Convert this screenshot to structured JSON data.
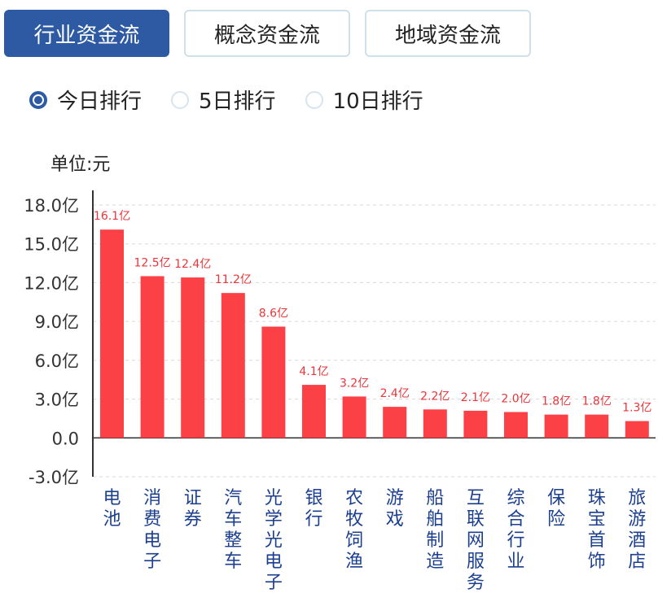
{
  "tabs": [
    {
      "label": "行业资金流",
      "active": true
    },
    {
      "label": "概念资金流",
      "active": false
    },
    {
      "label": "地域资金流",
      "active": false
    }
  ],
  "ranking_options": [
    {
      "label": "今日排行",
      "checked": true
    },
    {
      "label": "5日排行",
      "checked": false
    },
    {
      "label": "10日排行",
      "checked": false
    }
  ],
  "unit_label": "单位:元",
  "colors": {
    "bar": "#fb4146",
    "label": "#e8363a",
    "accent": "#2d5aa2",
    "category": "#1c3f8f"
  },
  "chart_data": {
    "type": "bar",
    "categories": [
      "电池",
      "消费电子",
      "证券",
      "汽车整车",
      "光学光电子",
      "银行",
      "农牧饲渔",
      "游戏",
      "船舶制造",
      "互联网服务",
      "综合行业",
      "保险",
      "珠宝首饰",
      "旅游酒店"
    ],
    "values": [
      16.1,
      12.5,
      12.4,
      11.2,
      8.6,
      4.1,
      3.2,
      2.4,
      2.2,
      2.1,
      2.0,
      1.8,
      1.8,
      1.3
    ],
    "value_labels": [
      "16.1亿",
      "12.5亿",
      "12.4亿",
      "11.2亿",
      "8.6亿",
      "4.1亿",
      "3.2亿",
      "2.4亿",
      "2.2亿",
      "2.1亿",
      "2.0亿",
      "1.8亿",
      "1.8亿",
      "1.3亿"
    ],
    "yticks": [
      18.0,
      15.0,
      12.0,
      9.0,
      6.0,
      3.0,
      0.0,
      -3.0
    ],
    "ytick_labels": [
      "18.0亿",
      "15.0亿",
      "12.0亿",
      "9.0亿",
      "6.0亿",
      "3.0亿",
      "0.0",
      "-3.0亿"
    ],
    "ylim": [
      -3.0,
      18.0
    ],
    "grid": true
  }
}
